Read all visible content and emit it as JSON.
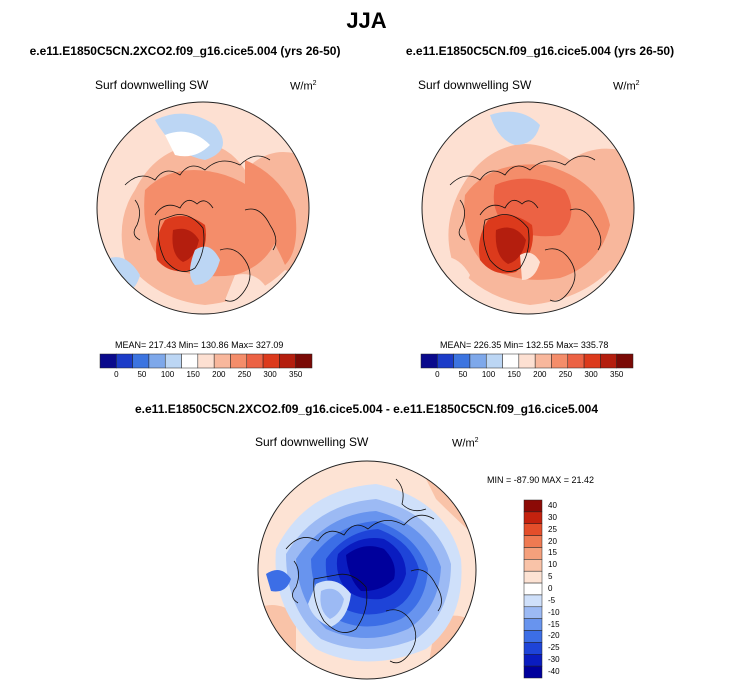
{
  "page_title": "JJA",
  "colors": {
    "coast": "#111111",
    "seq_scale": [
      "#0a0a8c",
      "#1c3cc8",
      "#3c74e0",
      "#7ea8ea",
      "#bcd6f4",
      "#ffffff",
      "#fde0d2",
      "#f8b79c",
      "#f48d6a",
      "#ec6244",
      "#dc3a1c",
      "#b41e0e",
      "#7a0a06"
    ],
    "diff_scale": [
      "#00009c",
      "#0a1cc0",
      "#1e44d8",
      "#3c6ee6",
      "#6894ee",
      "#9cbaf4",
      "#cfe0fa",
      "#ffffff",
      "#fde3d4",
      "#f9c3a8",
      "#f5a07c",
      "#ef7a52",
      "#e44e2a",
      "#c4220e",
      "#8c0a06"
    ]
  },
  "chart_data": [
    {
      "type": "heatmap",
      "title": "e.e11.E1850C5CN.2XCO2.f09_g16.cice5.004 (yrs 26-50)",
      "variable": "Surf downwelling SW",
      "units": "W/m2",
      "projection": "north-polar-stereographic",
      "stats": {
        "text": "MEAN= 217.43  Min= 130.86  Max= 327.09",
        "mean": 217.43,
        "min": 130.86,
        "max": 327.09
      },
      "colorbar": {
        "orientation": "horizontal",
        "levels": [
          0,
          25,
          50,
          75,
          100,
          125,
          150,
          175,
          200,
          225,
          250,
          275,
          300,
          325,
          350
        ],
        "tick_labels": [
          "0",
          "50",
          "100",
          "150",
          "200",
          "250",
          "300",
          "350"
        ]
      }
    },
    {
      "type": "heatmap",
      "title": "e.e11.E1850C5CN.f09_g16.cice5.004 (yrs 26-50)",
      "variable": "Surf downwelling SW",
      "units": "W/m2",
      "projection": "north-polar-stereographic",
      "stats": {
        "text": "MEAN= 226.35  Min= 132.55  Max= 335.78",
        "mean": 226.35,
        "min": 132.55,
        "max": 335.78
      },
      "colorbar": {
        "orientation": "horizontal",
        "levels": [
          0,
          25,
          50,
          75,
          100,
          125,
          150,
          175,
          200,
          225,
          250,
          275,
          300,
          325,
          350
        ],
        "tick_labels": [
          "0",
          "50",
          "100",
          "150",
          "200",
          "250",
          "300",
          "350"
        ]
      }
    },
    {
      "type": "heatmap",
      "title": "e.e11.E1850C5CN.2XCO2.f09_g16.cice5.004 - e.e11.E1850C5CN.f09_g16.cice5.004",
      "variable": "Surf downwelling SW",
      "units": "W/m2",
      "projection": "north-polar-stereographic",
      "stats": {
        "text": "MIN = -87.90 MAX =  21.42",
        "min": -87.9,
        "max": 21.42
      },
      "colorbar": {
        "orientation": "vertical",
        "levels": [
          -40,
          -30,
          -25,
          -20,
          -15,
          -10,
          -5,
          0,
          5,
          10,
          15,
          20,
          25,
          30,
          40
        ],
        "tick_labels": [
          "40",
          "30",
          "25",
          "20",
          "15",
          "10",
          "5",
          "0",
          "-5",
          "-10",
          "-15",
          "-20",
          "-25",
          "-30",
          "-40"
        ]
      }
    }
  ]
}
